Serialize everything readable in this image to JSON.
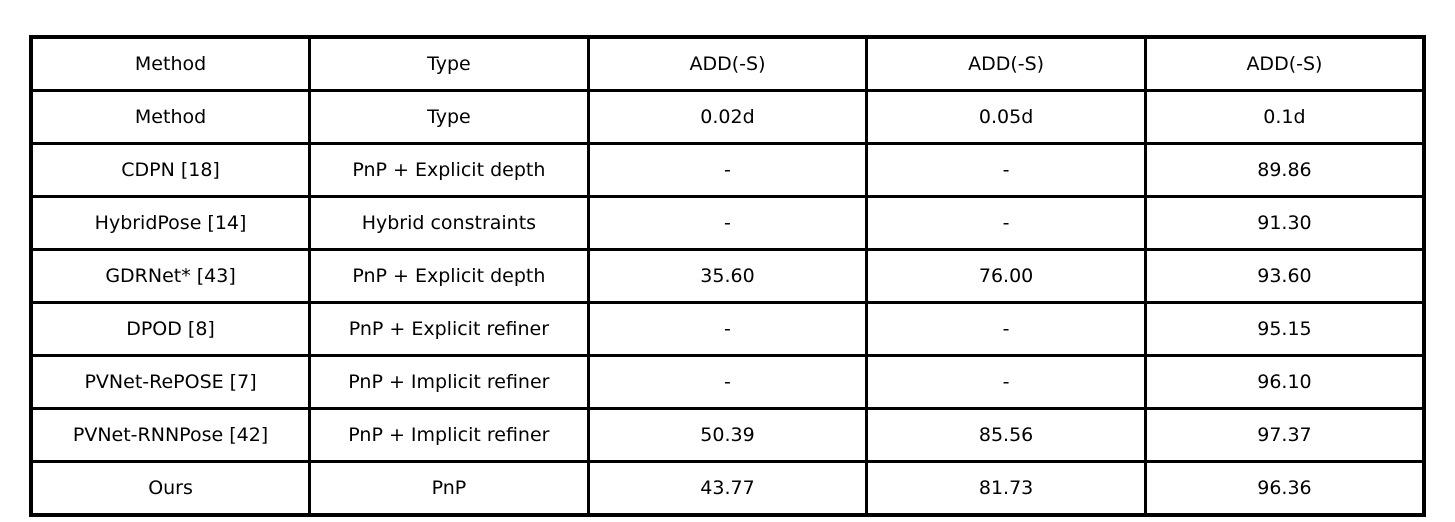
{
  "chart_data": {
    "type": "table",
    "columns": [
      "Method",
      "Type",
      "ADD(-S)",
      "ADD(-S)",
      "ADD(-S)"
    ],
    "rows": [
      [
        "Method",
        "Type",
        "0.02d",
        "0.05d",
        "0.1d"
      ],
      [
        "CDPN [18]",
        "PnP + Explicit depth",
        "-",
        "-",
        "89.86"
      ],
      [
        "HybridPose [14]",
        "Hybrid constraints",
        "-",
        "-",
        "91.30"
      ],
      [
        "GDRNet* [43]",
        "PnP + Explicit depth",
        "35.60",
        "76.00",
        "93.60"
      ],
      [
        "DPOD [8]",
        "PnP + Explicit refiner",
        "-",
        "-",
        "95.15"
      ],
      [
        "PVNet-RePOSE [7]",
        "PnP + Implicit refiner",
        "-",
        "-",
        "96.10"
      ],
      [
        "PVNet-RNNPose [42]",
        "PnP + Implicit refiner",
        "50.39",
        "85.56",
        "97.37"
      ],
      [
        "Ours",
        "PnP",
        "43.77",
        "81.73",
        "96.36"
      ]
    ]
  }
}
